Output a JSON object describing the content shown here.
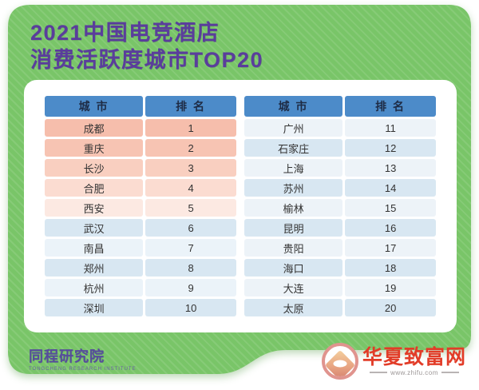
{
  "poster": {
    "title_line1": "2021中国电竞酒店",
    "title_line2": "消费活跃度城市TOP20"
  },
  "tables": [
    {
      "headers": {
        "city": "城 市",
        "rank": "排 名"
      },
      "rows": [
        {
          "city": "成都",
          "rank": "1",
          "bg": "#f6beac"
        },
        {
          "city": "重庆",
          "rank": "2",
          "bg": "#f7c4b3"
        },
        {
          "city": "长沙",
          "rank": "3",
          "bg": "#f9cfc0"
        },
        {
          "city": "合肥",
          "rank": "4",
          "bg": "#fbdcd1"
        },
        {
          "city": "西安",
          "rank": "5",
          "bg": "#fce9e2"
        },
        {
          "city": "武汉",
          "rank": "6",
          "bg": "#d8e7f2"
        },
        {
          "city": "南昌",
          "rank": "7",
          "bg": "#ebf3f9"
        },
        {
          "city": "郑州",
          "rank": "8",
          "bg": "#d8e7f2"
        },
        {
          "city": "杭州",
          "rank": "9",
          "bg": "#ebf3f9"
        },
        {
          "city": "深圳",
          "rank": "10",
          "bg": "#d8e7f2"
        }
      ]
    },
    {
      "headers": {
        "city": "城 市",
        "rank": "排 名"
      },
      "rows": [
        {
          "city": "广州",
          "rank": "11",
          "bg": "#edf3f8"
        },
        {
          "city": "石家庄",
          "rank": "12",
          "bg": "#d8e7f2"
        },
        {
          "city": "上海",
          "rank": "13",
          "bg": "#edf3f8"
        },
        {
          "city": "苏州",
          "rank": "14",
          "bg": "#d8e7f2"
        },
        {
          "city": "榆林",
          "rank": "15",
          "bg": "#edf3f8"
        },
        {
          "city": "昆明",
          "rank": "16",
          "bg": "#d8e7f2"
        },
        {
          "city": "贵阳",
          "rank": "17",
          "bg": "#edf3f8"
        },
        {
          "city": "海口",
          "rank": "18",
          "bg": "#d8e7f2"
        },
        {
          "city": "大连",
          "rank": "19",
          "bg": "#edf3f8"
        },
        {
          "city": "太原",
          "rank": "20",
          "bg": "#d8e7f2"
        }
      ]
    }
  ],
  "publisher": {
    "name": "同程研究院",
    "subtitle": "TONGCHENG RESEARCH INSTITUTE"
  },
  "watermark": {
    "site_name": "华夏致富网",
    "site_url": "www.zhifu.com"
  },
  "colors": {
    "panel_green": "#79c568",
    "title_purple": "#5a3d9c",
    "header_blue": "#4c8bc9",
    "row_salmon": "#f6beac",
    "row_blue": "#d8e7f2",
    "watermark_red": "#e23c28"
  },
  "chart_data": {
    "type": "table",
    "title": "2021中国电竞酒店消费活跃度城市TOP20",
    "columns": [
      "城市",
      "排名"
    ],
    "rows": [
      [
        "成都",
        1
      ],
      [
        "重庆",
        2
      ],
      [
        "长沙",
        3
      ],
      [
        "合肥",
        4
      ],
      [
        "西安",
        5
      ],
      [
        "武汉",
        6
      ],
      [
        "南昌",
        7
      ],
      [
        "郑州",
        8
      ],
      [
        "杭州",
        9
      ],
      [
        "深圳",
        10
      ],
      [
        "广州",
        11
      ],
      [
        "石家庄",
        12
      ],
      [
        "上海",
        13
      ],
      [
        "苏州",
        14
      ],
      [
        "榆林",
        15
      ],
      [
        "昆明",
        16
      ],
      [
        "贵阳",
        17
      ],
      [
        "海口",
        18
      ],
      [
        "大连",
        19
      ],
      [
        "太原",
        20
      ]
    ],
    "source": "同程研究院"
  }
}
